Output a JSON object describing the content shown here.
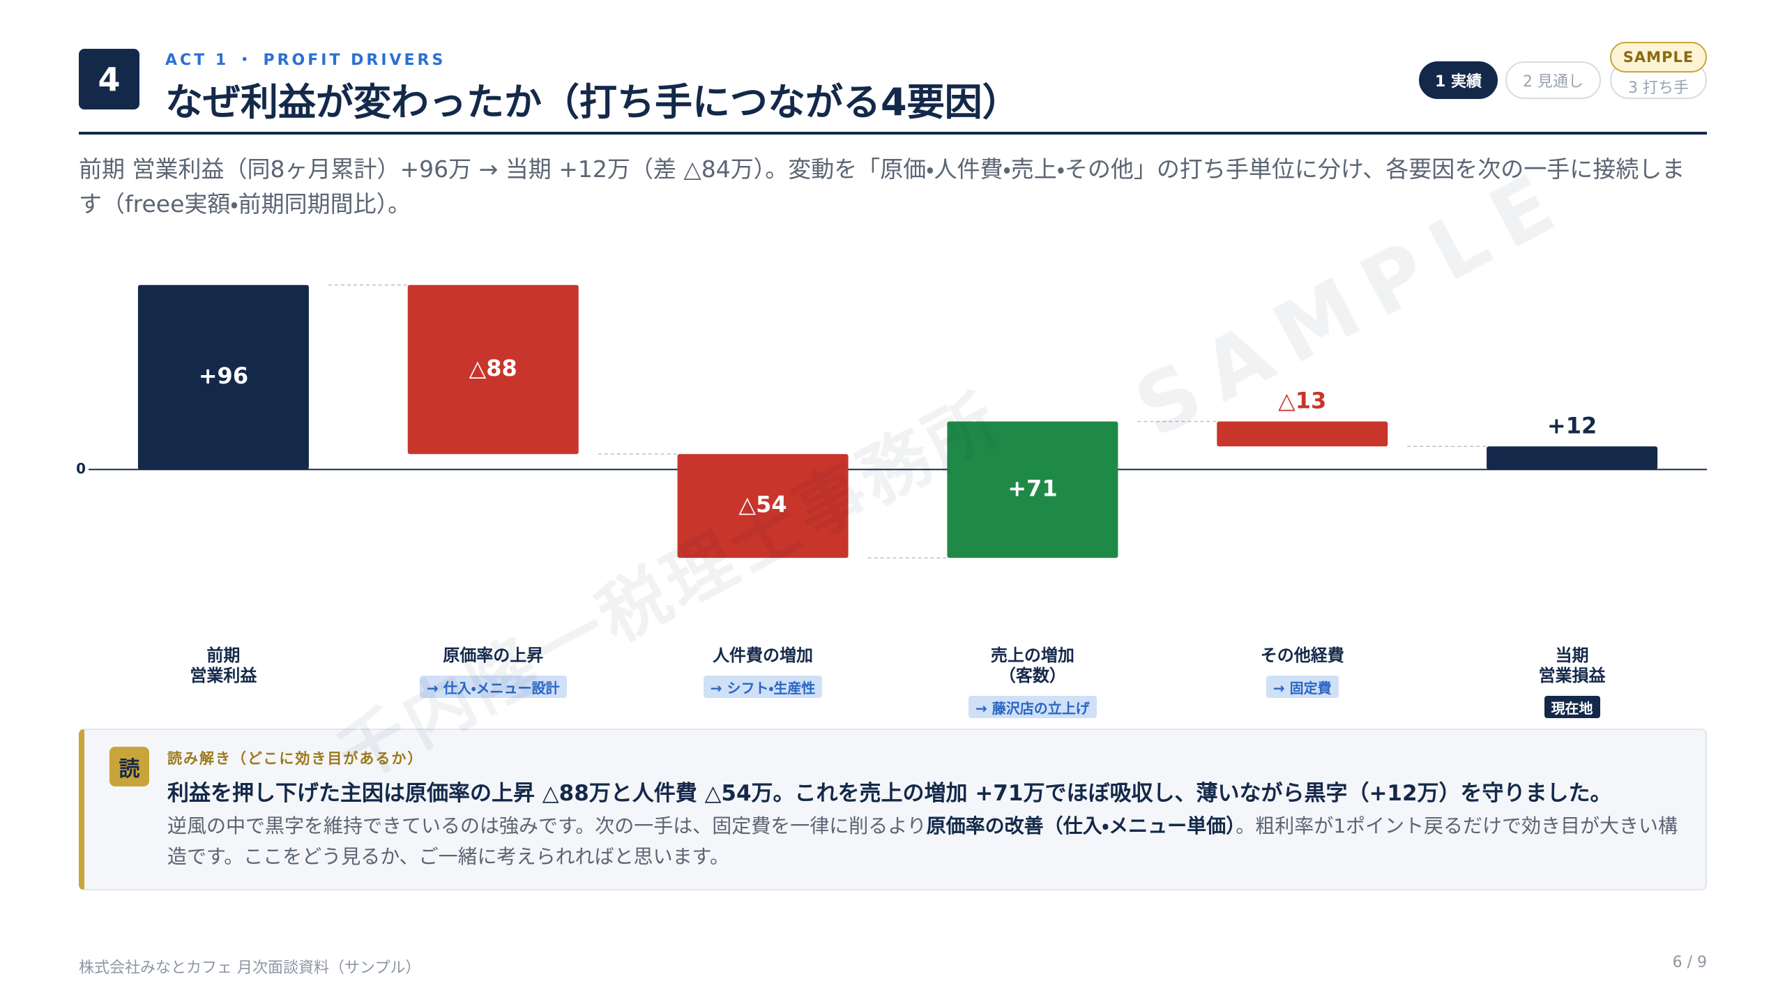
{
  "header": {
    "number": "4",
    "eyebrow": "ACT 1 ・ PROFIT DRIVERS",
    "title": "なぜ利益が変わったか（打ち手につながる4要因）",
    "steps": [
      "1 実績",
      "2 見通し",
      "3 打ち手"
    ],
    "badge": "SAMPLE"
  },
  "subtitle": "前期 営業利益（同8ヶ月累計）+96万 → 当期 +12万（差 △84万）。変動を「原価・人件費・売上・その他」の打ち手単位に分け、各要因を次の一手に接続します（freee実額・前期同期間比）。",
  "chart_data": {
    "type": "waterfall",
    "categories": [
      "前期\n営業利益",
      "原価率の上昇",
      "人件費の増加",
      "売上の増加\n（客数）",
      "その他経費",
      "当期\n営業損益"
    ],
    "category_notes": [
      null,
      "→ 仕入・メニュー設計",
      "→ シフト・生産性",
      "→ 藤沢店の立上げ",
      "→ 固定費",
      "現在地"
    ],
    "values": [
      96,
      -88,
      -54,
      71,
      -13,
      12
    ],
    "value_labels": [
      "+96",
      "△88",
      "△54",
      "+71",
      "△13",
      "+12"
    ],
    "measure": [
      "total",
      "relative",
      "relative",
      "relative",
      "relative",
      "total"
    ],
    "colors": [
      "#14294a",
      "#c8352b",
      "#c8352b",
      "#1f8a47",
      "#c8352b",
      "#14294a"
    ],
    "ylim": [
      -75,
      105
    ],
    "yticks": [
      0
    ]
  },
  "callout": {
    "icon": "読",
    "heading": "読み解き（どこに効き目があるか）",
    "lead": "利益を押し下げた主因は原価率の上昇 △88万と人件費 △54万。これを売上の増加 +71万でほぼ吸収し、薄いながら黒字（+12万）を守りました。",
    "body": [
      "逆風の中で黒字を維持できているのは強みです。次の一手は、固定費を一律に削るより",
      "原価率の改善（仕入・メニュー単価）",
      "。粗利率が1ポイント戻るだけで効き目が大きい構造です。ここをどう見るか、ご一緒に考えられればと思います。"
    ]
  },
  "watermark": {
    "sample": "SAMPLE",
    "office": "千内隆一税理士事務所"
  },
  "footer": {
    "left": "株式会社みなとカフェ 月次面談資料（サンプル）",
    "right": "6 / 9"
  }
}
